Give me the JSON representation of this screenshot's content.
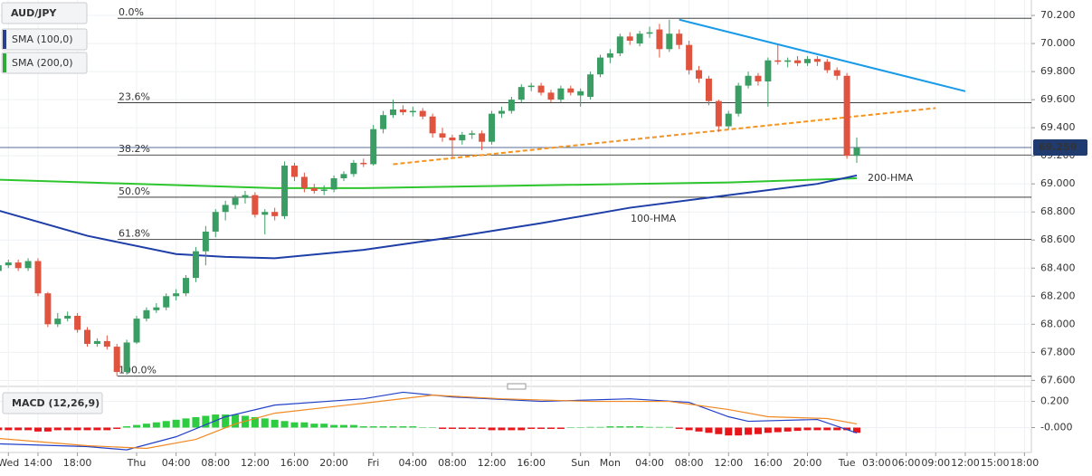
{
  "chart_data": [
    {
      "type": "candlestick",
      "title": "AUD/JPY",
      "indicators": [
        {
          "label": "SMA (100,0)",
          "color": "#2b3f8f"
        },
        {
          "label": "SMA (200,0)",
          "color": "#2eaa3a"
        }
      ],
      "up_color": "#3a9d63",
      "down_color": "#e0533f",
      "xlim": [
        -3.85,
        100.7
      ],
      "ylim": [
        67.57,
        70.31
      ],
      "yticks": [
        {
          "value": 70.2,
          "label": "70.200"
        },
        {
          "value": 70.0,
          "label": "70.000"
        },
        {
          "value": 69.8,
          "label": "69.800"
        },
        {
          "value": 69.6,
          "label": "69.600"
        },
        {
          "value": 69.4,
          "label": "69.400"
        },
        {
          "value": 69.2,
          "label": "69.200"
        },
        {
          "value": 69.0,
          "label": "69.000"
        },
        {
          "value": 68.8,
          "label": "68.800"
        },
        {
          "value": 68.6,
          "label": "68.600"
        },
        {
          "value": 68.4,
          "label": "68.400"
        },
        {
          "value": 68.2,
          "label": "68.200"
        },
        {
          "value": 68.0,
          "label": "68.000"
        },
        {
          "value": 67.8,
          "label": "67.800"
        },
        {
          "value": 67.6,
          "label": "67.600"
        }
      ],
      "xticks": [
        {
          "value": -3,
          "label": "Wed"
        },
        {
          "value": 0,
          "label": "14:00"
        },
        {
          "value": 4,
          "label": "18:00"
        },
        {
          "value": 10,
          "label": "Thu"
        },
        {
          "value": 14,
          "label": "04:00"
        },
        {
          "value": 18,
          "label": "08:00"
        },
        {
          "value": 22,
          "label": "12:00"
        },
        {
          "value": 26,
          "label": "16:00"
        },
        {
          "value": 30,
          "label": "20:00"
        },
        {
          "value": 34,
          "label": "Fri"
        },
        {
          "value": 38,
          "label": "04:00"
        },
        {
          "value": 42,
          "label": "08:00"
        },
        {
          "value": 46,
          "label": "12:00"
        },
        {
          "value": 50,
          "label": "16:00"
        },
        {
          "value": 55,
          "label": "Sun"
        },
        {
          "value": 58,
          "label": "Mon"
        },
        {
          "value": 62,
          "label": "04:00"
        },
        {
          "value": 66,
          "label": "08:00"
        },
        {
          "value": 70,
          "label": "12:00"
        },
        {
          "value": 74,
          "label": "16:00"
        },
        {
          "value": 78,
          "label": "20:00"
        },
        {
          "value": 82,
          "label": "Tue"
        },
        {
          "value": 85,
          "label": "03:00"
        },
        {
          "value": 88,
          "label": "06:00"
        },
        {
          "value": 91,
          "label": "09:00"
        },
        {
          "value": 94,
          "label": "12:00"
        },
        {
          "value": 97,
          "label": "15:00"
        },
        {
          "value": 100,
          "label": "18:00"
        }
      ],
      "grid": true,
      "x": [
        -4,
        -3,
        -2,
        -1,
        0,
        1,
        2,
        3,
        4,
        5,
        6,
        7,
        8,
        9,
        10,
        11,
        12,
        13,
        14,
        15,
        16,
        17,
        18,
        19,
        20,
        21,
        22,
        23,
        24,
        25,
        26,
        27,
        28,
        29,
        30,
        31,
        32,
        33,
        34,
        35,
        36,
        37,
        38,
        39,
        40,
        41,
        42,
        43,
        44,
        45,
        46,
        47,
        48,
        49,
        50,
        51,
        52,
        53,
        54,
        55,
        56,
        57,
        58,
        59,
        60,
        61,
        62,
        63,
        64,
        65,
        66,
        67,
        68,
        69,
        70,
        71,
        72,
        73,
        74,
        75,
        76,
        77,
        78,
        79,
        80,
        81,
        82,
        83
      ],
      "open": [
        68.38,
        68.42,
        68.44,
        68.4,
        68.45,
        68.22,
        68.0,
        68.04,
        68.06,
        67.96,
        67.86,
        67.88,
        67.84,
        67.66,
        67.87,
        68.04,
        68.1,
        68.12,
        68.2,
        68.22,
        68.33,
        68.52,
        68.66,
        68.8,
        68.85,
        68.9,
        68.92,
        68.78,
        68.8,
        68.77,
        69.13,
        69.05,
        68.97,
        68.95,
        68.96,
        69.04,
        69.07,
        69.15,
        69.14,
        69.39,
        69.49,
        69.53,
        69.51,
        69.52,
        69.48,
        69.36,
        69.33,
        69.31,
        69.35,
        69.36,
        69.3,
        69.5,
        69.52,
        69.6,
        69.69,
        69.7,
        69.65,
        69.6,
        69.68,
        69.63,
        69.62,
        69.78,
        69.9,
        69.93,
        70.05,
        70.0,
        70.07,
        70.1,
        69.96,
        70.07,
        69.99,
        69.81,
        69.75,
        69.59,
        69.41,
        69.5,
        69.7,
        69.77,
        69.73,
        69.88,
        69.87,
        69.88,
        69.86,
        69.89,
        69.87,
        69.81,
        69.77,
        69.2
      ],
      "high": [
        68.44,
        68.46,
        68.46,
        68.47,
        68.47,
        68.23,
        68.08,
        68.09,
        68.08,
        67.98,
        67.9,
        67.92,
        67.86,
        67.89,
        68.06,
        68.12,
        68.15,
        68.22,
        68.25,
        68.35,
        68.55,
        68.7,
        68.82,
        68.88,
        68.92,
        68.95,
        68.94,
        68.82,
        68.83,
        69.16,
        69.15,
        69.08,
        69.0,
        68.99,
        69.06,
        69.09,
        69.17,
        69.18,
        69.42,
        69.52,
        69.6,
        69.56,
        69.55,
        69.54,
        69.5,
        69.4,
        69.35,
        69.37,
        69.38,
        69.38,
        69.52,
        69.55,
        69.62,
        69.71,
        69.72,
        69.72,
        69.67,
        69.7,
        69.7,
        69.68,
        69.8,
        69.92,
        69.96,
        70.07,
        70.08,
        70.09,
        70.12,
        70.14,
        70.17,
        70.1,
        70.02,
        69.84,
        69.77,
        69.6,
        69.52,
        69.72,
        69.8,
        69.79,
        69.9,
        69.99,
        69.9,
        69.91,
        69.91,
        69.91,
        69.89,
        69.83,
        69.79,
        69.33
      ],
      "low": [
        68.35,
        68.4,
        68.38,
        68.38,
        68.2,
        67.98,
        67.98,
        68.02,
        67.94,
        67.84,
        67.84,
        67.82,
        67.63,
        67.64,
        67.86,
        68.02,
        68.08,
        68.1,
        68.17,
        68.2,
        68.3,
        68.42,
        68.62,
        68.74,
        68.82,
        68.86,
        68.76,
        68.64,
        68.74,
        68.75,
        69.02,
        68.94,
        68.93,
        68.92,
        68.94,
        69.02,
        69.05,
        69.12,
        69.13,
        69.36,
        69.47,
        69.49,
        69.48,
        69.46,
        69.33,
        69.3,
        69.19,
        69.28,
        69.32,
        69.24,
        69.28,
        69.47,
        69.5,
        69.58,
        69.66,
        69.63,
        69.58,
        69.58,
        69.63,
        69.55,
        69.6,
        69.76,
        69.86,
        69.91,
        69.99,
        69.98,
        70.04,
        69.9,
        69.94,
        69.96,
        69.78,
        69.72,
        69.56,
        69.37,
        69.39,
        69.48,
        69.68,
        69.7,
        69.55,
        69.85,
        69.83,
        69.84,
        69.84,
        69.84,
        69.79,
        69.74,
        69.18,
        69.15
      ],
      "close": [
        68.42,
        68.44,
        68.4,
        68.45,
        68.22,
        68.0,
        68.04,
        68.06,
        67.96,
        67.86,
        67.88,
        67.84,
        67.66,
        67.87,
        68.04,
        68.1,
        68.12,
        68.2,
        68.22,
        68.33,
        68.52,
        68.66,
        68.8,
        68.85,
        68.9,
        68.92,
        68.78,
        68.8,
        68.77,
        69.13,
        69.05,
        68.97,
        68.95,
        68.96,
        69.04,
        69.07,
        69.15,
        69.14,
        69.39,
        69.49,
        69.53,
        69.51,
        69.52,
        69.48,
        69.36,
        69.33,
        69.31,
        69.35,
        69.36,
        69.3,
        69.5,
        69.52,
        69.6,
        69.69,
        69.7,
        69.65,
        69.6,
        69.68,
        69.65,
        69.66,
        69.78,
        69.9,
        69.93,
        70.05,
        70.02,
        70.07,
        70.08,
        69.96,
        70.07,
        69.99,
        69.81,
        69.75,
        69.59,
        69.41,
        69.5,
        69.7,
        69.77,
        69.73,
        69.88,
        69.87,
        69.88,
        69.86,
        69.89,
        69.87,
        69.81,
        69.77,
        69.2,
        69.259
      ],
      "fib_levels": [
        {
          "label": "0.0%",
          "value": 70.18
        },
        {
          "label": "23.6%",
          "value": 69.578
        },
        {
          "label": "38.2%",
          "value": 69.206
        },
        {
          "label": "50.0%",
          "value": 68.905
        },
        {
          "label": "61.8%",
          "value": 68.604
        },
        {
          "label": "100.0%",
          "value": 67.63
        }
      ],
      "last_price": 69.259,
      "series": [
        {
          "name": "200-HMA",
          "color": "#2ec62e",
          "x": [
            -4,
            5,
            24,
            33,
            51,
            70,
            83
          ],
          "values": [
            69.03,
            69.01,
            68.97,
            68.97,
            68.99,
            69.01,
            69.04
          ]
        },
        {
          "name": "100-HMA",
          "color": "#1f3fa8",
          "x": [
            -4,
            5,
            14,
            19,
            24,
            33,
            42,
            51,
            60,
            70,
            79,
            83
          ],
          "values": [
            68.81,
            68.63,
            68.5,
            68.48,
            68.47,
            68.53,
            68.62,
            68.72,
            68.83,
            68.92,
            69.0,
            69.06
          ]
        },
        {
          "color": "#1a9be8",
          "x": [
            65,
            94
          ],
          "values": [
            70.17,
            69.66
          ]
        },
        {
          "color": "#f39422",
          "dashed": true,
          "x": [
            36,
            91
          ],
          "values": [
            69.14,
            69.54
          ]
        }
      ]
    },
    {
      "type": "macd",
      "title": "MACD (12,26,9)",
      "xlim": [
        -3.85,
        100.7
      ],
      "ylim": [
        -0.19,
        0.28
      ],
      "yticks": [
        {
          "value": 0.2,
          "label": "0.200"
        },
        {
          "value": 0,
          "label": "-0.000"
        }
      ],
      "up_color": "#2ecc40",
      "down_color": "#e8161b",
      "x": [
        -4,
        -3,
        -2,
        -1,
        0,
        1,
        2,
        3,
        4,
        5,
        6,
        7,
        8,
        9,
        10,
        11,
        12,
        13,
        14,
        15,
        16,
        17,
        18,
        19,
        20,
        21,
        22,
        23,
        24,
        25,
        26,
        27,
        28,
        29,
        30,
        31,
        32,
        33,
        34,
        35,
        36,
        37,
        38,
        39,
        40,
        41,
        42,
        43,
        44,
        45,
        46,
        47,
        48,
        49,
        50,
        51,
        52,
        53,
        54,
        55,
        56,
        57,
        58,
        59,
        60,
        61,
        62,
        63,
        64,
        65,
        66,
        67,
        68,
        69,
        70,
        71,
        72,
        73,
        74,
        75,
        76,
        77,
        78,
        79,
        80,
        81,
        82,
        83
      ],
      "histogram": [
        -0.02,
        -0.02,
        -0.02,
        -0.02,
        -0.03,
        -0.03,
        -0.02,
        -0.02,
        -0.02,
        -0.02,
        -0.02,
        -0.02,
        -0.01,
        0.01,
        0.02,
        0.03,
        0.04,
        0.05,
        0.06,
        0.07,
        0.08,
        0.09,
        0.1,
        0.1,
        0.1,
        0.09,
        0.08,
        0.07,
        0.06,
        0.05,
        0.04,
        0.04,
        0.03,
        0.03,
        0.02,
        0.02,
        0.02,
        0.01,
        0.01,
        0.01,
        0.01,
        0.01,
        0.01,
        0,
        0,
        -0.01,
        -0.01,
        -0.01,
        -0.01,
        -0.01,
        -0.02,
        -0.02,
        -0.02,
        -0.02,
        -0.01,
        -0.01,
        -0.01,
        -0.01,
        0,
        0,
        0.005,
        0.005,
        0.01,
        0.01,
        0.01,
        0.01,
        0.005,
        0.005,
        0.005,
        -0.01,
        -0.02,
        -0.03,
        -0.04,
        -0.05,
        -0.06,
        -0.06,
        -0.055,
        -0.05,
        -0.04,
        -0.035,
        -0.03,
        -0.025,
        -0.02,
        -0.02,
        -0.02,
        -0.02,
        -0.02,
        -0.04
      ],
      "series": [
        {
          "color": "#2140c8",
          "x": [
            -4,
            5,
            9,
            14,
            19,
            24,
            33,
            37,
            42,
            51,
            60,
            66,
            70,
            72,
            79,
            83
          ],
          "values": [
            -0.124,
            -0.145,
            -0.17,
            -0.07,
            0.083,
            0.172,
            0.22,
            0.27,
            0.234,
            0.2,
            0.22,
            0.193,
            0.083,
            0.048,
            0.062,
            -0.041
          ]
        },
        {
          "color": "#f08a24",
          "x": [
            -4,
            5,
            11,
            16,
            20,
            24,
            33,
            40,
            47,
            56,
            64,
            70,
            74,
            80,
            83
          ],
          "values": [
            -0.083,
            -0.138,
            -0.159,
            -0.09,
            0.028,
            0.11,
            0.186,
            0.248,
            0.22,
            0.2,
            0.2,
            0.138,
            0.083,
            0.069,
            0.028
          ]
        }
      ]
    }
  ]
}
